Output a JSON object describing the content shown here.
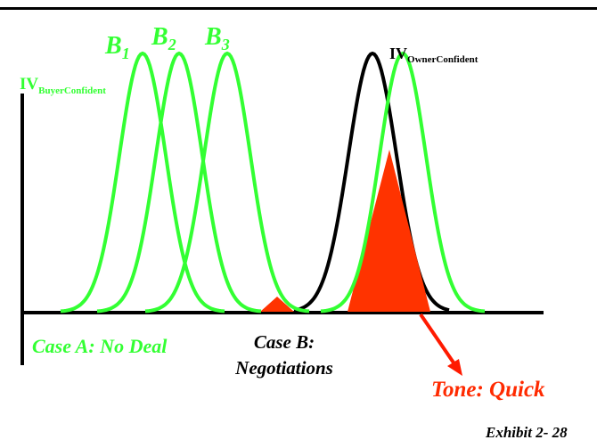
{
  "labels": {
    "b1": {
      "base": "B",
      "sub": "1"
    },
    "b2": {
      "base": "B",
      "sub": "2"
    },
    "b3": {
      "base": "B",
      "sub": "3"
    },
    "iv_buyer": {
      "base": "IV",
      "sub": "BuyerConfident"
    },
    "iv_owner": {
      "base": "IV",
      "sub": "OwnerConfident"
    },
    "case_a": "Case A: No Deal",
    "case_b": "Case B: Negotiations",
    "tone": "Tone: Quick",
    "exhibit": "Exhibit 2- 28"
  },
  "colors": {
    "buyer_curves": "#33ff33",
    "owner_curve": "#000000",
    "overlap_fill": "#ff3300",
    "tone_text": "#ff2a00",
    "axes": "#000000"
  }
}
